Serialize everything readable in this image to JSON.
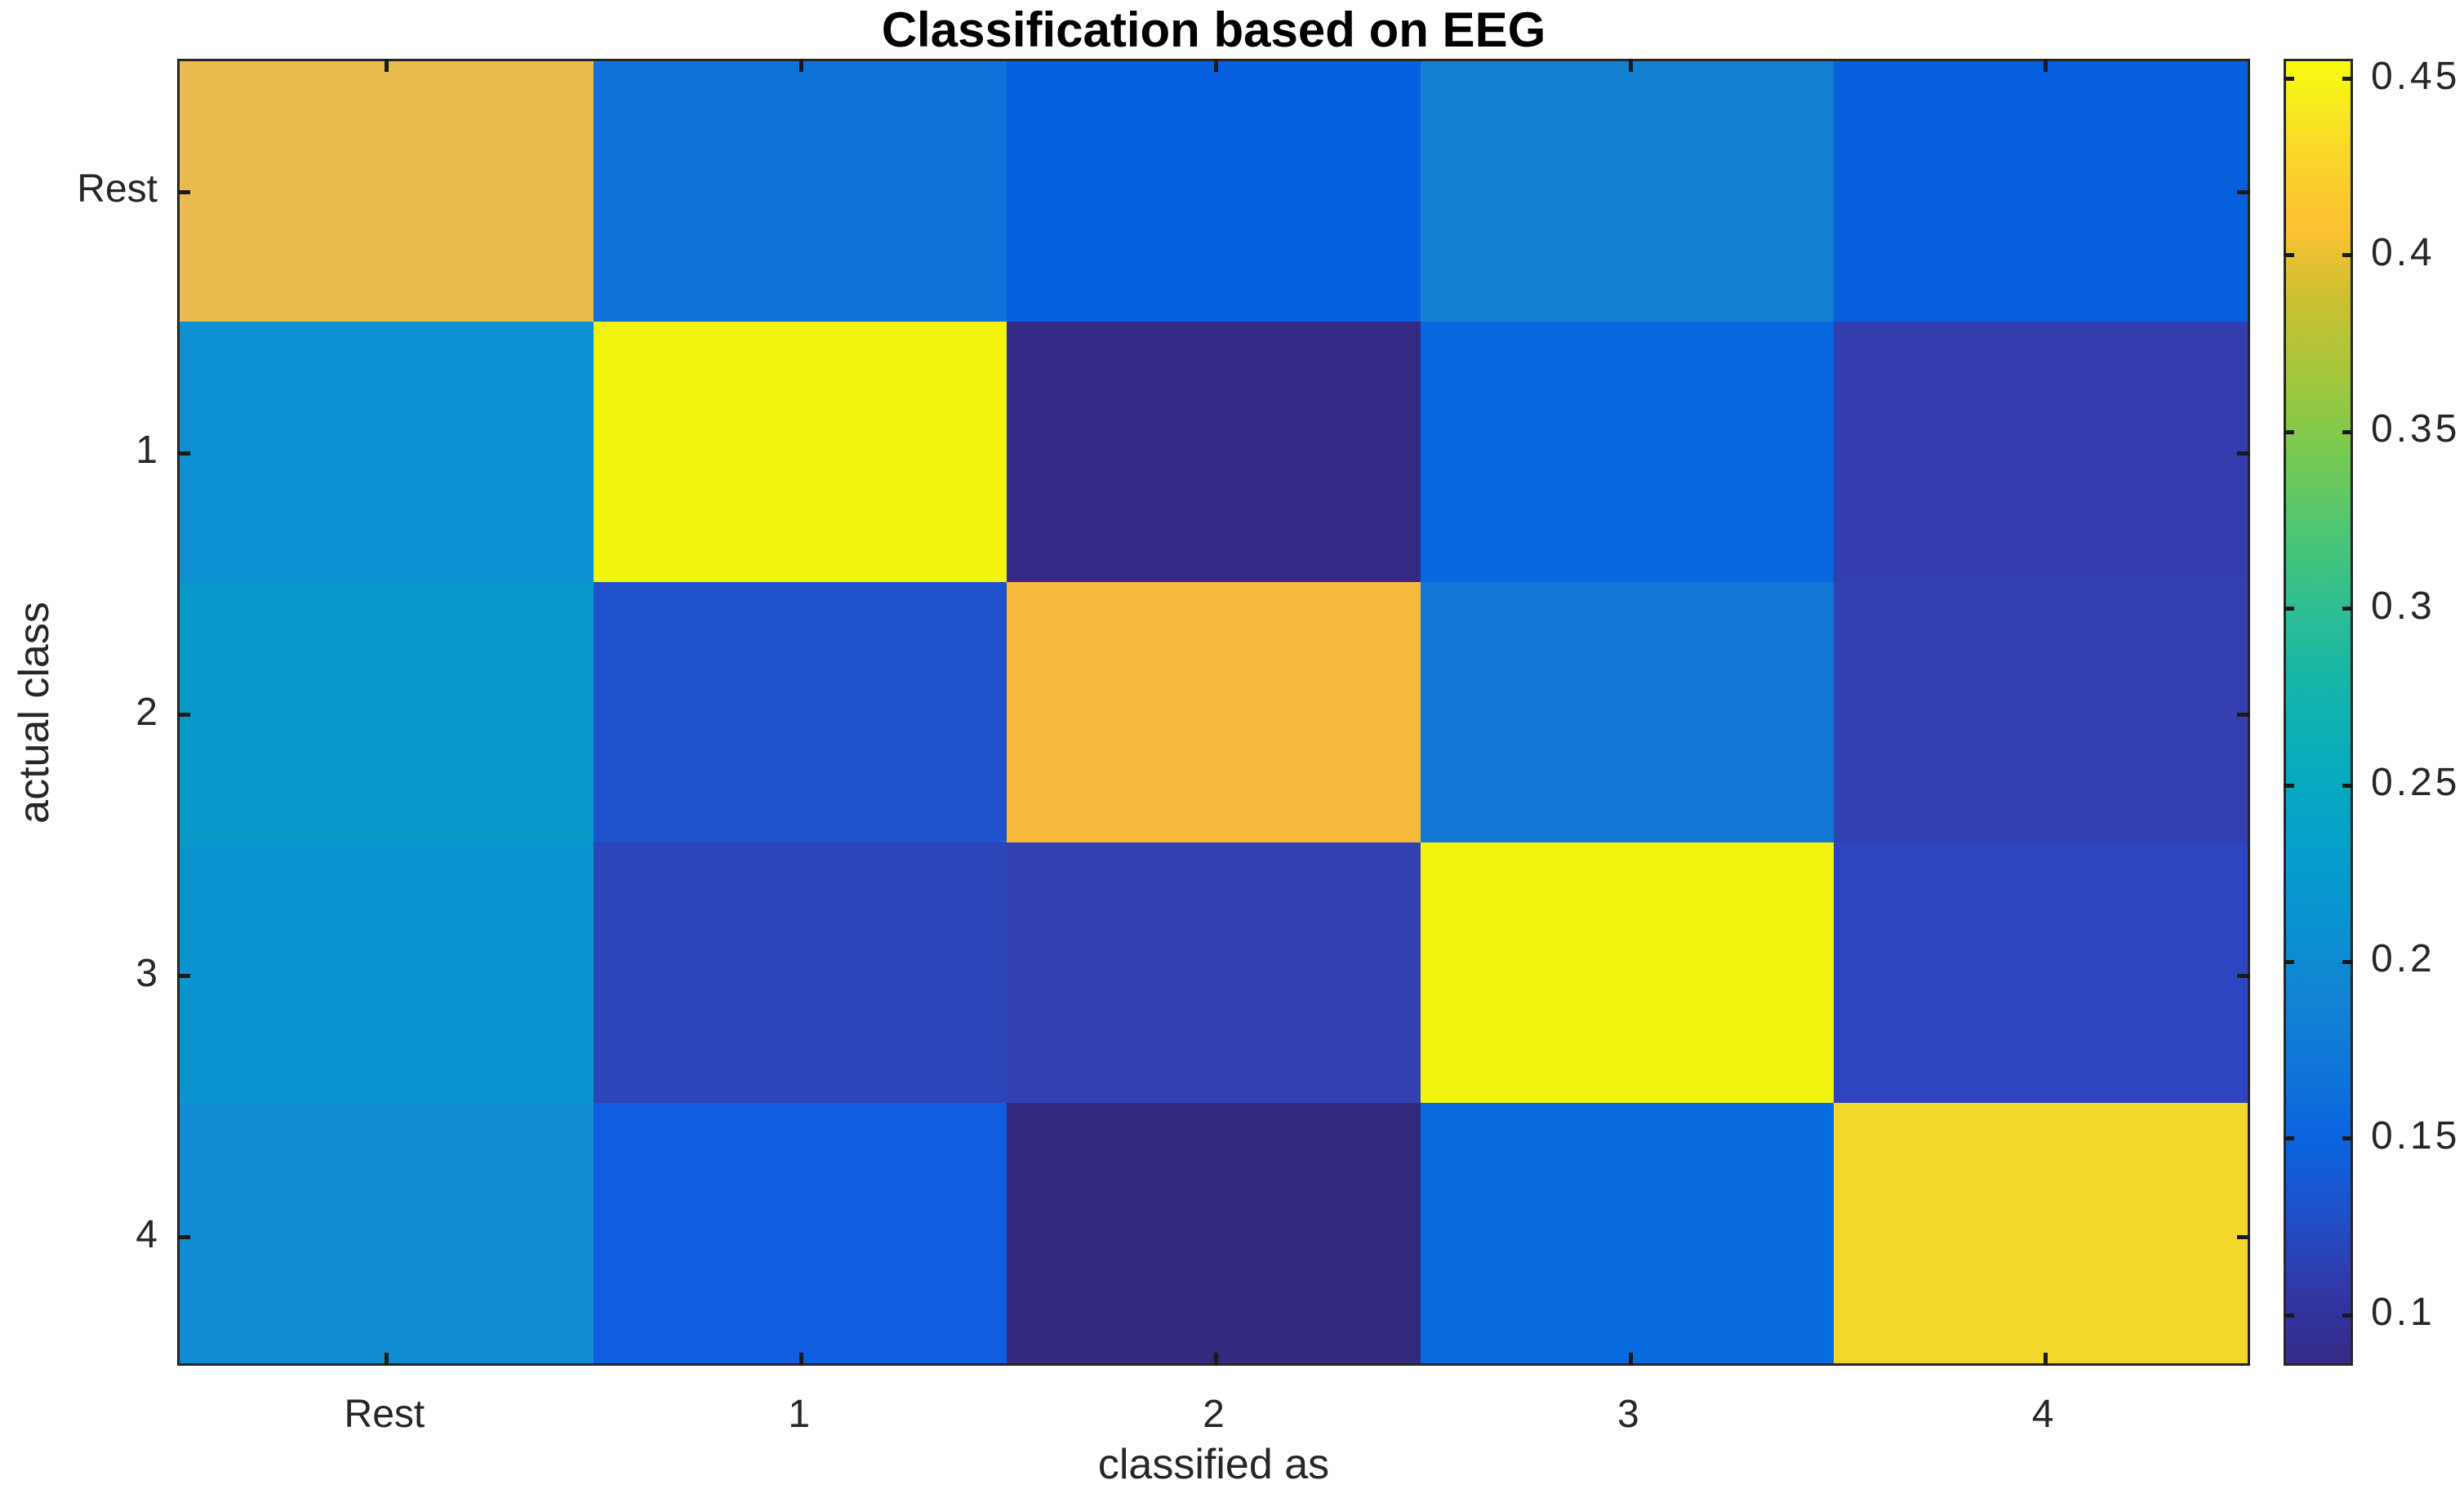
{
  "title": "Classification based on EEG",
  "axes": {
    "x_label": "classified as",
    "y_label": "actual class",
    "x_tick_labels": [
      "Rest",
      "1",
      "2",
      "3",
      "4"
    ],
    "y_tick_labels": [
      "Rest",
      "1",
      "2",
      "3",
      "4"
    ]
  },
  "colorbar": {
    "tick_labels": [
      "0.45",
      "0.4",
      "0.35",
      "0.3",
      "0.25",
      "0.2",
      "0.15",
      "0.1"
    ],
    "tick_values": [
      0.45,
      0.4,
      0.35,
      0.3,
      0.25,
      0.2,
      0.15,
      0.1
    ],
    "vmin": 0.085,
    "vmax": 0.455,
    "colormap": "parula",
    "gradient_stops": [
      {
        "t": 0.0,
        "c": "#352a87"
      },
      {
        "t": 0.06,
        "c": "#3139a8"
      },
      {
        "t": 0.12,
        "c": "#1e53cd"
      },
      {
        "t": 0.17,
        "c": "#0b63df"
      },
      {
        "t": 0.22,
        "c": "#0f74da"
      },
      {
        "t": 0.28,
        "c": "#1283d3"
      },
      {
        "t": 0.34,
        "c": "#0a93d1"
      },
      {
        "t": 0.4,
        "c": "#06a0ca"
      },
      {
        "t": 0.46,
        "c": "#08acbd"
      },
      {
        "t": 0.52,
        "c": "#15b5ab"
      },
      {
        "t": 0.58,
        "c": "#2ebe92"
      },
      {
        "t": 0.64,
        "c": "#4ec673"
      },
      {
        "t": 0.7,
        "c": "#78ca51"
      },
      {
        "t": 0.76,
        "c": "#a5c63b"
      },
      {
        "t": 0.82,
        "c": "#cdc032"
      },
      {
        "t": 0.87,
        "c": "#fcc134"
      },
      {
        "t": 0.92,
        "c": "#fbd22b"
      },
      {
        "t": 0.96,
        "c": "#f8e821"
      },
      {
        "t": 1.0,
        "c": "#f9fb0e"
      }
    ]
  },
  "colors": {
    "text": "#262626",
    "axis_edge": "#262626",
    "tick_mark": "#1a1a1a",
    "background": "#ffffff",
    "title_text": "#000000"
  },
  "chart_data": {
    "type": "heatmap",
    "title": "Classification based on EEG",
    "xlabel": "classified as",
    "ylabel": "actual class",
    "x_categories": [
      "Rest",
      "1",
      "2",
      "3",
      "4"
    ],
    "y_categories": [
      "Rest",
      "1",
      "2",
      "3",
      "4"
    ],
    "values": [
      [
        0.4,
        0.155,
        0.133,
        0.174,
        0.135
      ],
      [
        0.196,
        0.451,
        0.086,
        0.142,
        0.111
      ],
      [
        0.213,
        0.124,
        0.407,
        0.163,
        0.113
      ],
      [
        0.202,
        0.116,
        0.113,
        0.451,
        0.118
      ],
      [
        0.19,
        0.131,
        0.09,
        0.146,
        0.43
      ]
    ],
    "cell_colors": [
      [
        "#e9ba4e",
        "#0f72d8",
        "#0561e0",
        "#1580d0",
        "#0660de"
      ],
      [
        "#0d90d4",
        "#f2f410",
        "#342a85",
        "#0568e0",
        "#333dae"
      ],
      [
        "#0799c9",
        "#2052cc",
        "#f5b93d",
        "#1278d8",
        "#3440b2"
      ],
      [
        "#0995cf",
        "#2c46b9",
        "#3340b0",
        "#f2f410",
        "#2e45c2"
      ],
      [
        "#0f8cd4",
        "#0f5ee2",
        "#33297e",
        "#076ade",
        "#f4d72b"
      ]
    ],
    "color_range": [
      0.085,
      0.455
    ],
    "colorbar_ticks": [
      0.1,
      0.15,
      0.2,
      0.25,
      0.3,
      0.35,
      0.4,
      0.45
    ],
    "legend_position": "right-colorbar",
    "grid": false
  }
}
